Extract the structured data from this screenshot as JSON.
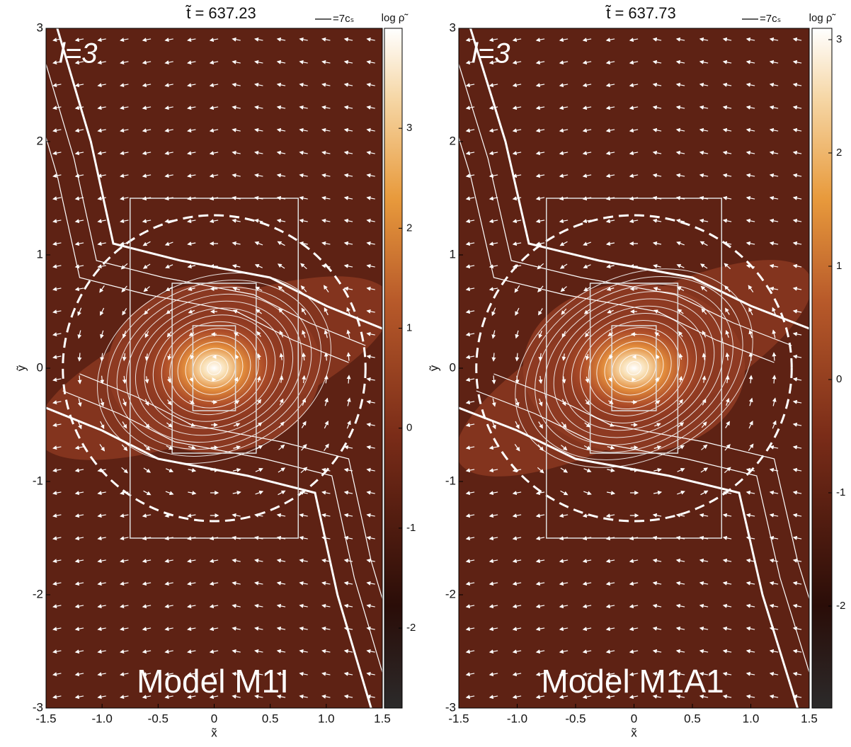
{
  "chart_data": [
    {
      "type": "density-map",
      "title": "t̃ = 637.23",
      "arrow_label": "=7cₛ",
      "colorbar_label": "log ρ̃",
      "xlabel": "x̃",
      "ylabel": "ỹ",
      "annotation": "l=3",
      "model_label": "Model M1I",
      "xlim": [
        -1.5,
        1.5
      ],
      "ylim": [
        -3,
        3
      ],
      "xticks": [
        -1.5,
        {
          "value": -1,
          "label": "-1.0"
        },
        -0.5,
        0,
        0.5,
        {
          "value": 1,
          "label": "1.0"
        },
        1.5
      ],
      "yticks": [
        -3,
        -2,
        -1,
        0,
        1,
        2,
        3
      ],
      "clim": [
        -2.8,
        4.0
      ],
      "cticks": [
        -2,
        -1,
        0,
        1,
        2,
        3
      ]
    },
    {
      "type": "density-map",
      "title": "t̃ = 637.73",
      "arrow_label": "=7cₛ",
      "colorbar_label": "log ρ̃",
      "xlabel": "x̃",
      "ylabel": "ỹ",
      "annotation": "l=3",
      "model_label": "Model M1A1",
      "xlim": [
        -1.5,
        1.5
      ],
      "ylim": [
        -3,
        3
      ],
      "xticks": [
        -1.5,
        {
          "value": -1,
          "label": "-1.0"
        },
        -0.5,
        0,
        0.5,
        {
          "value": 1,
          "label": "1.0"
        },
        1.5
      ],
      "yticks": [
        -3,
        -2,
        -1,
        0,
        1,
        2,
        3
      ],
      "clim": [
        -2.9,
        3.1
      ],
      "cticks": [
        -2,
        -1,
        0,
        1,
        2,
        3
      ]
    }
  ]
}
